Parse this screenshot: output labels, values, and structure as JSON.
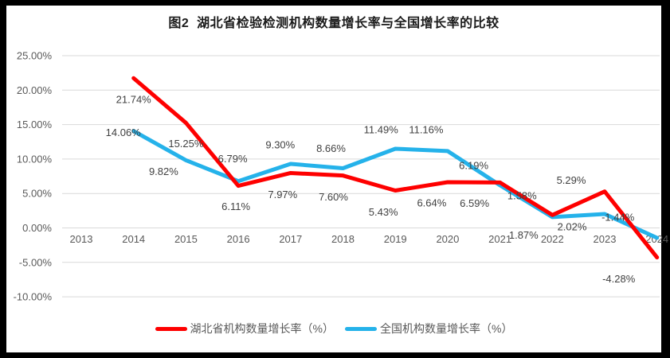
{
  "title": "图2  湖北省检验检测机构数量增长率与全国增长率的比较",
  "colors": {
    "hubei_line": "#fe0000",
    "national_line": "#25b2ea",
    "gridline": "#d9d9d9",
    "axis_text": "#595959",
    "data_label_text": "#404040",
    "frame_border": "#000000",
    "chart_background": "#ffffff"
  },
  "chart_data": {
    "type": "line",
    "title": "图2  湖北省检验检测机构数量增长率与全国增长率的比较",
    "categories": [
      "2013",
      "2014",
      "2015",
      "2016",
      "2017",
      "2018",
      "2019",
      "2020",
      "2021",
      "2022",
      "2023",
      "2024"
    ],
    "series": [
      {
        "name": "湖北省机构数量增长率（%）",
        "color": "#fe0000",
        "values": [
          null,
          21.74,
          15.25,
          6.11,
          7.97,
          7.6,
          5.43,
          6.64,
          6.59,
          1.87,
          5.29,
          -4.28
        ],
        "labels": [
          null,
          "21.74%",
          "15.25%",
          "6.11%",
          "7.97%",
          "7.60%",
          "5.43%",
          "6.64%",
          "6.59%",
          "1.87%",
          "5.29%",
          "-4.28%"
        ],
        "label_offsets": [
          null,
          [
            0,
            27
          ],
          [
            0,
            26
          ],
          [
            -3,
            26
          ],
          [
            -10,
            27
          ],
          [
            -12,
            27
          ],
          [
            -15,
            27
          ],
          [
            -20,
            26
          ],
          [
            -32,
            26
          ],
          [
            -36,
            25
          ],
          [
            -42,
            -14
          ],
          [
            -48,
            27
          ]
        ]
      },
      {
        "name": "全国机构数量增长率（%）",
        "color": "#25b2ea",
        "values": [
          null,
          14.06,
          9.82,
          6.79,
          9.3,
          8.66,
          11.49,
          11.16,
          6.19,
          1.58,
          2.02,
          -1.44
        ],
        "labels": [
          null,
          "14.06%",
          "9.82%",
          "6.79%",
          "9.30%",
          "8.66%",
          "11.49%",
          "11.16%",
          "6.19%",
          "1.58%",
          "2.02%",
          "-1.44%"
        ],
        "label_offsets": [
          null,
          [
            -13,
            2
          ],
          [
            -28,
            14
          ],
          [
            -7,
            -28
          ],
          [
            -13,
            -24
          ],
          [
            -15,
            -25
          ],
          [
            -18,
            -24
          ],
          [
            -27,
            -27
          ],
          [
            -33,
            -25
          ],
          [
            -38,
            -27
          ],
          [
            -41,
            16
          ],
          [
            -49,
            -26
          ]
        ]
      }
    ],
    "y_tick_labels": [
      "25.00%",
      "20.00%",
      "15.00%",
      "10.00%",
      "5.00%",
      "0.00%",
      "-5.00%",
      "-10.00%"
    ],
    "y_tick_values": [
      25,
      20,
      15,
      10,
      5,
      0,
      -5,
      -10
    ],
    "ylim": [
      -10,
      25
    ],
    "xlabel": "",
    "ylabel": "",
    "grid": true,
    "legend_position": "bottom"
  }
}
